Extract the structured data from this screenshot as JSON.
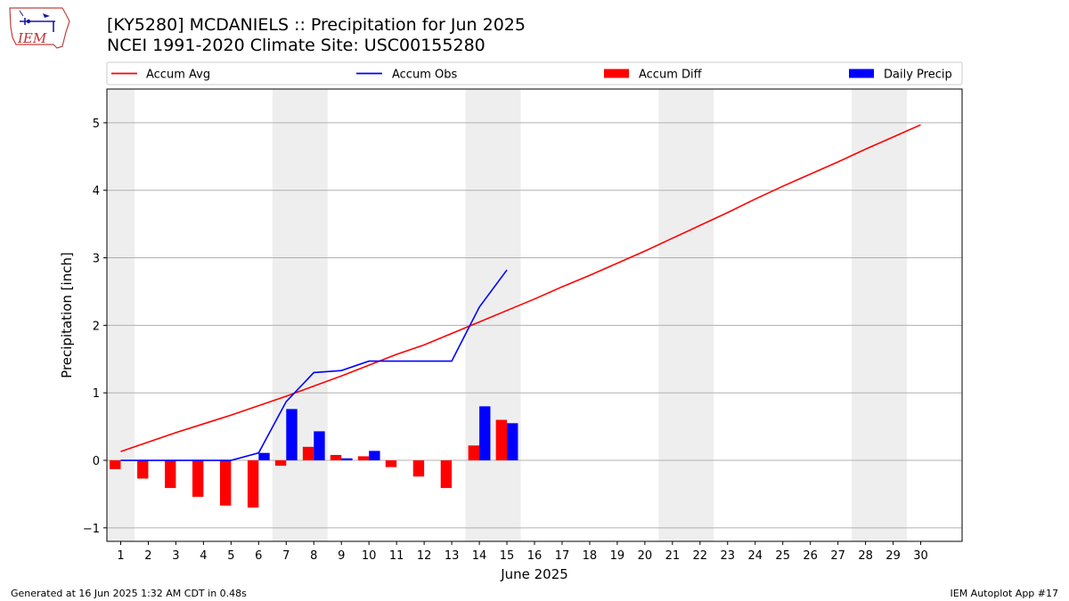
{
  "header": {
    "title_line1": "[KY5280] MCDANIELS :: Precipitation for Jun 2025",
    "title_line2": "NCEI 1991-2020 Climate Site: USC00155280",
    "logo_text": "IEM"
  },
  "footer": {
    "generated": "Generated at 16 Jun 2025 1:32 AM CDT in 0.48s",
    "app": "IEM Autoplot App #17"
  },
  "colors": {
    "avg": "#ff0000",
    "obs": "#0000ff",
    "diff": "#ff0000",
    "daily": "#0000ff",
    "weekend_shade": "#eeeeee",
    "grid": "#b0b0b0"
  },
  "chart_data": {
    "type": "bar",
    "xlabel": "June 2025",
    "ylabel": "Precipitation [inch]",
    "xlim": [
      0.5,
      31.5
    ],
    "ylim": [
      -1.2,
      5.5
    ],
    "x_ticks": [
      1,
      2,
      3,
      4,
      5,
      6,
      7,
      8,
      9,
      10,
      11,
      12,
      13,
      14,
      15,
      16,
      17,
      18,
      19,
      20,
      21,
      22,
      23,
      24,
      25,
      26,
      27,
      28,
      29,
      30
    ],
    "y_ticks": [
      -1,
      0,
      1,
      2,
      3,
      4,
      5
    ],
    "grid": "horizontal",
    "legend_position": "top",
    "weekend_spans": [
      [
        0.5,
        1.5
      ],
      [
        6.5,
        8.5
      ],
      [
        13.5,
        15.5
      ],
      [
        20.5,
        22.5
      ],
      [
        27.5,
        29.5
      ]
    ],
    "series": [
      {
        "name": "Accum Avg",
        "kind": "line",
        "x": [
          1,
          2,
          3,
          4,
          5,
          6,
          7,
          8,
          9,
          10,
          11,
          12,
          13,
          14,
          15,
          16,
          17,
          18,
          19,
          20,
          21,
          22,
          23,
          24,
          25,
          26,
          27,
          28,
          29,
          30
        ],
        "values": [
          0.13,
          0.27,
          0.41,
          0.54,
          0.67,
          0.81,
          0.95,
          1.1,
          1.25,
          1.41,
          1.57,
          1.71,
          1.88,
          2.05,
          2.22,
          2.39,
          2.57,
          2.74,
          2.92,
          3.1,
          3.29,
          3.48,
          3.67,
          3.87,
          4.06,
          4.24,
          4.42,
          4.61,
          4.79,
          4.97
        ]
      },
      {
        "name": "Accum Obs",
        "kind": "line",
        "x": [
          1,
          2,
          3,
          4,
          5,
          6,
          7,
          8,
          9,
          10,
          11,
          12,
          13,
          14,
          15
        ],
        "values": [
          0.0,
          0.0,
          0.0,
          0.0,
          0.0,
          0.11,
          0.87,
          1.3,
          1.33,
          1.47,
          1.47,
          1.47,
          1.47,
          2.27,
          2.82
        ]
      },
      {
        "name": "Accum Diff",
        "kind": "bar",
        "x": [
          1,
          2,
          3,
          4,
          5,
          6,
          7,
          8,
          9,
          10,
          11,
          12,
          13,
          14,
          15
        ],
        "values": [
          -0.13,
          -0.27,
          -0.41,
          -0.54,
          -0.67,
          -0.7,
          -0.08,
          0.2,
          0.08,
          0.06,
          -0.1,
          -0.24,
          -0.41,
          0.22,
          0.6
        ]
      },
      {
        "name": "Daily Precip",
        "kind": "bar",
        "x": [
          1,
          2,
          3,
          4,
          5,
          6,
          7,
          8,
          9,
          10,
          11,
          12,
          13,
          14,
          15
        ],
        "values": [
          0.0,
          0.0,
          0.0,
          0.0,
          0.0,
          0.11,
          0.76,
          0.43,
          0.03,
          0.14,
          0.0,
          0.0,
          0.0,
          0.8,
          0.55
        ]
      }
    ]
  }
}
